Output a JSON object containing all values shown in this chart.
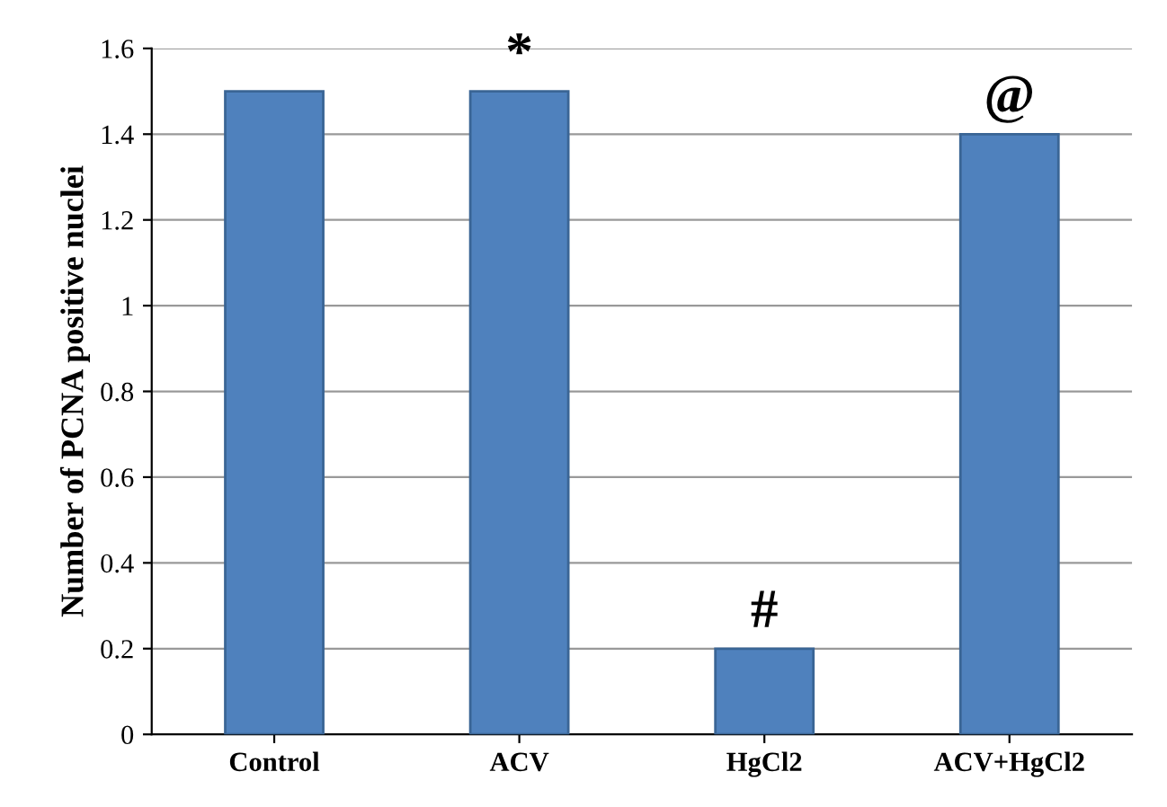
{
  "chart_data": {
    "type": "bar",
    "ylabel": "Number of PCNA positive nuclei",
    "categories": [
      "Control",
      "ACV",
      "HgCl2",
      "ACV+HgCl2"
    ],
    "values": [
      1.5,
      1.5,
      0.2,
      1.4
    ],
    "color": "#4f81bd",
    "ylim": [
      0,
      1.6
    ],
    "yticks": [
      0,
      0.2,
      0.4,
      0.6,
      0.8,
      1,
      1.2,
      1.4,
      1.6
    ],
    "grid": "y",
    "annotations": [
      {
        "text": "*",
        "x": "ACV",
        "y": 1.5
      },
      {
        "text": "#",
        "x": "HgCl2",
        "y": 0.2
      },
      {
        "text": "@",
        "x": "ACV+HgCl2",
        "y": 1.4
      }
    ]
  }
}
